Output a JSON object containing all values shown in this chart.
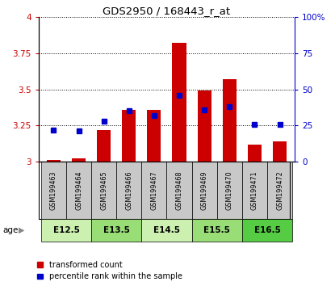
{
  "title": "GDS2950 / 168443_r_at",
  "samples": [
    "GSM199463",
    "GSM199464",
    "GSM199465",
    "GSM199466",
    "GSM199467",
    "GSM199468",
    "GSM199469",
    "GSM199470",
    "GSM199471",
    "GSM199472"
  ],
  "red_values": [
    3.01,
    3.02,
    3.22,
    3.36,
    3.36,
    3.82,
    3.49,
    3.57,
    3.12,
    3.14
  ],
  "blue_values_pct": [
    22,
    21,
    28,
    35,
    32,
    46,
    36,
    38,
    26,
    26
  ],
  "ylim": [
    3.0,
    4.0
  ],
  "y_ticks_left": [
    3.0,
    3.25,
    3.5,
    3.75,
    4.0
  ],
  "y_ticks_right": [
    0,
    25,
    50,
    75,
    100
  ],
  "age_groups": [
    {
      "label": "E12.5",
      "start": 0,
      "end": 2,
      "color": "#ccf0b0"
    },
    {
      "label": "E13.5",
      "start": 2,
      "end": 4,
      "color": "#99dd77"
    },
    {
      "label": "E14.5",
      "start": 4,
      "end": 6,
      "color": "#ccf0b0"
    },
    {
      "label": "E15.5",
      "start": 6,
      "end": 8,
      "color": "#99dd77"
    },
    {
      "label": "E16.5",
      "start": 8,
      "end": 10,
      "color": "#55cc44"
    }
  ],
  "bar_color_red": "#cc0000",
  "bar_color_blue": "#0000cc",
  "bar_width": 0.55,
  "base_value": 3.0,
  "legend_red": "transformed count",
  "legend_blue": "percentile rank within the sample",
  "sample_label_bg": "#c8c8c8"
}
